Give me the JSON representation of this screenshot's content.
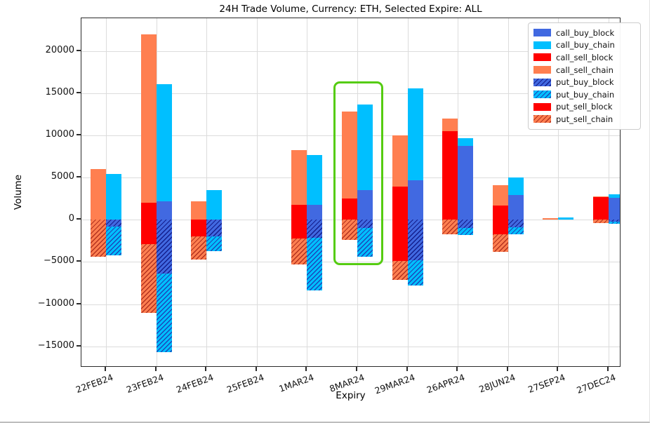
{
  "chart_data": {
    "type": "bar",
    "title": "24H Trade Volume, Currency: ETH, Selected Expire: ALL",
    "xlabel": "Expiry",
    "ylabel": "Volume",
    "categories": [
      "22FEB24",
      "23FEB24",
      "24FEB24",
      "25FEB24",
      "1MAR24",
      "8MAR24",
      "29MAR24",
      "26APR24",
      "28JUN24",
      "27SEP24",
      "27DEC24"
    ],
    "yticks": [
      20000,
      15000,
      10000,
      5000,
      0,
      -5000,
      -10000,
      -15000
    ],
    "ylim": [
      -17500,
      23900
    ],
    "grid": true,
    "legend_position": "upper right",
    "bar_layout": "per category: left column = sell (calls stacked up, puts stacked down), right column = buy (calls up, puts down)",
    "highlight": {
      "category": "8MAR24",
      "color": "#55cc11"
    },
    "series": [
      {
        "name": "call_buy_block",
        "column": "buy",
        "direction": "up",
        "color": "#4169e1",
        "hatch": false,
        "hatch_color": null,
        "values": [
          0,
          2200,
          0,
          0,
          1800,
          3500,
          4700,
          8800,
          2900,
          0,
          2600
        ]
      },
      {
        "name": "call_buy_chain",
        "column": "buy",
        "direction": "up",
        "color": "#00bfff",
        "hatch": false,
        "hatch_color": null,
        "values": [
          5400,
          13900,
          3500,
          0,
          5900,
          10200,
          10900,
          850,
          2100,
          300,
          400
        ]
      },
      {
        "name": "call_sell_block",
        "column": "sell",
        "direction": "up",
        "color": "#ff0000",
        "hatch": false,
        "hatch_color": null,
        "values": [
          0,
          2000,
          0,
          0,
          1800,
          2500,
          3900,
          10500,
          1700,
          0,
          2700
        ]
      },
      {
        "name": "call_sell_chain",
        "column": "sell",
        "direction": "up",
        "color": "#ff7f50",
        "hatch": false,
        "hatch_color": null,
        "values": [
          6000,
          20000,
          2200,
          0,
          6500,
          10300,
          6100,
          1500,
          2400,
          200,
          100
        ]
      },
      {
        "name": "put_buy_block",
        "column": "buy",
        "direction": "down",
        "color": "#4169e1",
        "hatch": true,
        "hatch_color": "#141e8c",
        "values": [
          -800,
          -6400,
          -2000,
          0,
          -2100,
          -1000,
          -4800,
          -1000,
          -900,
          0,
          -200
        ]
      },
      {
        "name": "put_buy_chain",
        "column": "buy",
        "direction": "down",
        "color": "#00bfff",
        "hatch": true,
        "hatch_color": "#1d45b8",
        "values": [
          -3400,
          -9300,
          -1700,
          0,
          -6300,
          -3400,
          -3000,
          -800,
          -800,
          0,
          -300
        ]
      },
      {
        "name": "put_sell_block",
        "column": "sell",
        "direction": "down",
        "color": "#ff0000",
        "hatch": false,
        "hatch_color": null,
        "values": [
          0,
          -2900,
          -2000,
          0,
          -2200,
          0,
          -4900,
          0,
          -1700,
          0,
          0
        ]
      },
      {
        "name": "put_sell_chain",
        "column": "sell",
        "direction": "down",
        "color": "#ff7f50",
        "hatch": true,
        "hatch_color": "#b23220",
        "values": [
          -4400,
          -8100,
          -2700,
          0,
          -3100,
          -2400,
          -2200,
          -1700,
          -2100,
          0,
          -350
        ]
      }
    ]
  }
}
